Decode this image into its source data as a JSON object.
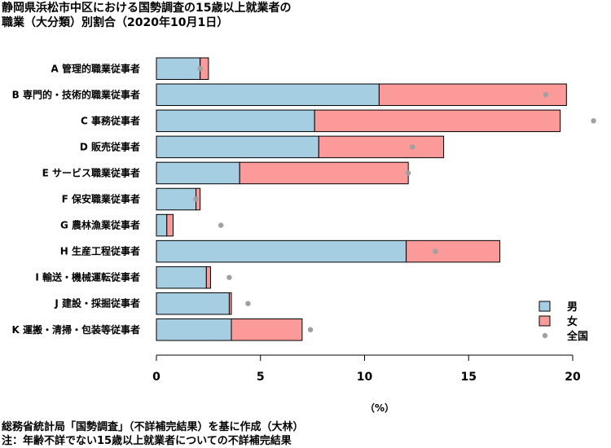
{
  "title_lines": [
    "静岡県浜松市中区における国勢調査の15歳以上就業者の",
    "職業（大分類）別割合（2020年10月1日）"
  ],
  "unit_label": "（%）",
  "footer_lines": [
    "総務省統計局「国勢調査」（不詳補完結果）を基に作成（大林）",
    "注：年齢不詳でない15歳以上就業者についての不詳補完結果"
  ],
  "colors": {
    "male": "#a6cee3",
    "female": "#fb9a99",
    "national": "#a0a0a0",
    "axis": "#000000"
  },
  "chart_data": {
    "type": "bar",
    "orientation": "horizontal",
    "stacked": true,
    "categories": [
      "A 管理的職業従事者",
      "B 専門的・技術的職業従事者",
      "C 事務従事者",
      "D 販売従事者",
      "E サービス職業従事者",
      "F 保安職業従事者",
      "G 農林漁業従事者",
      "H 生産工程従事者",
      "I 輸送・機械運転従事者",
      "J 建設・採掘従事者",
      "K 運搬・清掃・包装等従事者"
    ],
    "series": [
      {
        "name": "男",
        "values": [
          2.1,
          10.7,
          7.6,
          7.8,
          4.0,
          1.9,
          0.5,
          12.0,
          2.4,
          3.5,
          3.6
        ]
      },
      {
        "name": "女",
        "values": [
          0.4,
          9.0,
          11.8,
          6.0,
          8.1,
          0.2,
          0.3,
          4.5,
          0.2,
          0.1,
          3.4
        ]
      }
    ],
    "points": {
      "name": "全国",
      "values": [
        2.1,
        18.7,
        21.0,
        12.3,
        12.1,
        1.9,
        3.1,
        13.4,
        3.5,
        4.4,
        7.4
      ]
    },
    "xlim": [
      0,
      21
    ],
    "xticks": [
      0,
      5,
      10,
      15,
      20
    ],
    "legend_position": "bottom-right",
    "grid": false
  }
}
